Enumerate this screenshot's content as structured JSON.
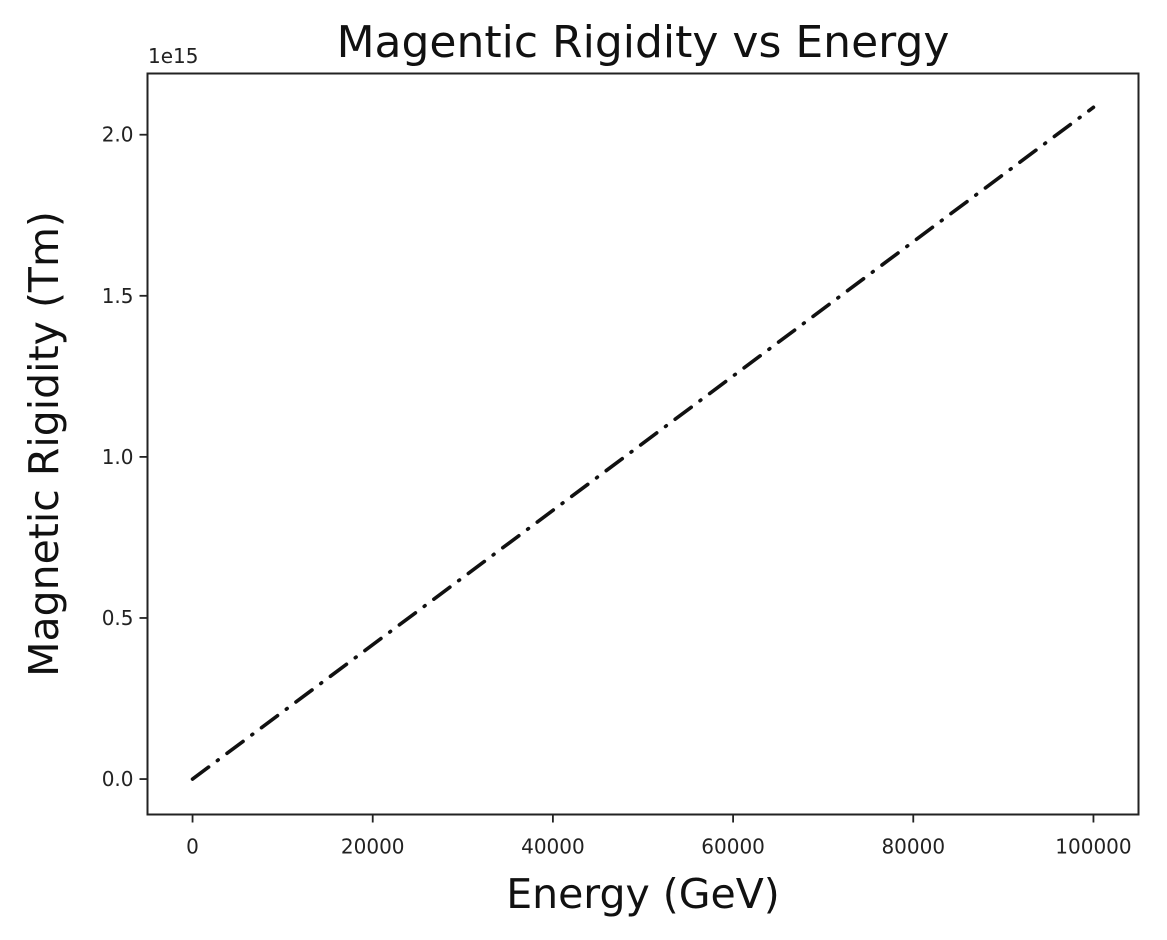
{
  "chart_data": {
    "type": "line",
    "title": "Magentic Rigidity vs Energy",
    "xlabel": "Energy (GeV)",
    "ylabel": "Magnetic Rigidity (Tm)",
    "y_offset_text": "1e15",
    "xlim": [
      -5000,
      105000
    ],
    "ylim": [
      -110000000000000.0,
      2190000000000000.0
    ],
    "xticks": [
      0,
      20000,
      40000,
      60000,
      80000,
      100000
    ],
    "xtick_labels": [
      "0",
      "20000",
      "40000",
      "60000",
      "80000",
      "100000"
    ],
    "yticks": [
      0,
      500000000000000.0,
      1000000000000000.0,
      1500000000000000.0,
      2000000000000000.0
    ],
    "ytick_labels": [
      "0.0",
      "0.5",
      "1.0",
      "1.5",
      "2.0"
    ],
    "grid": false,
    "series": [
      {
        "x": [
          0,
          100000
        ],
        "y": [
          0,
          2085000000000000.0
        ],
        "color": "#111111",
        "linestyle": "dashdot"
      }
    ]
  }
}
